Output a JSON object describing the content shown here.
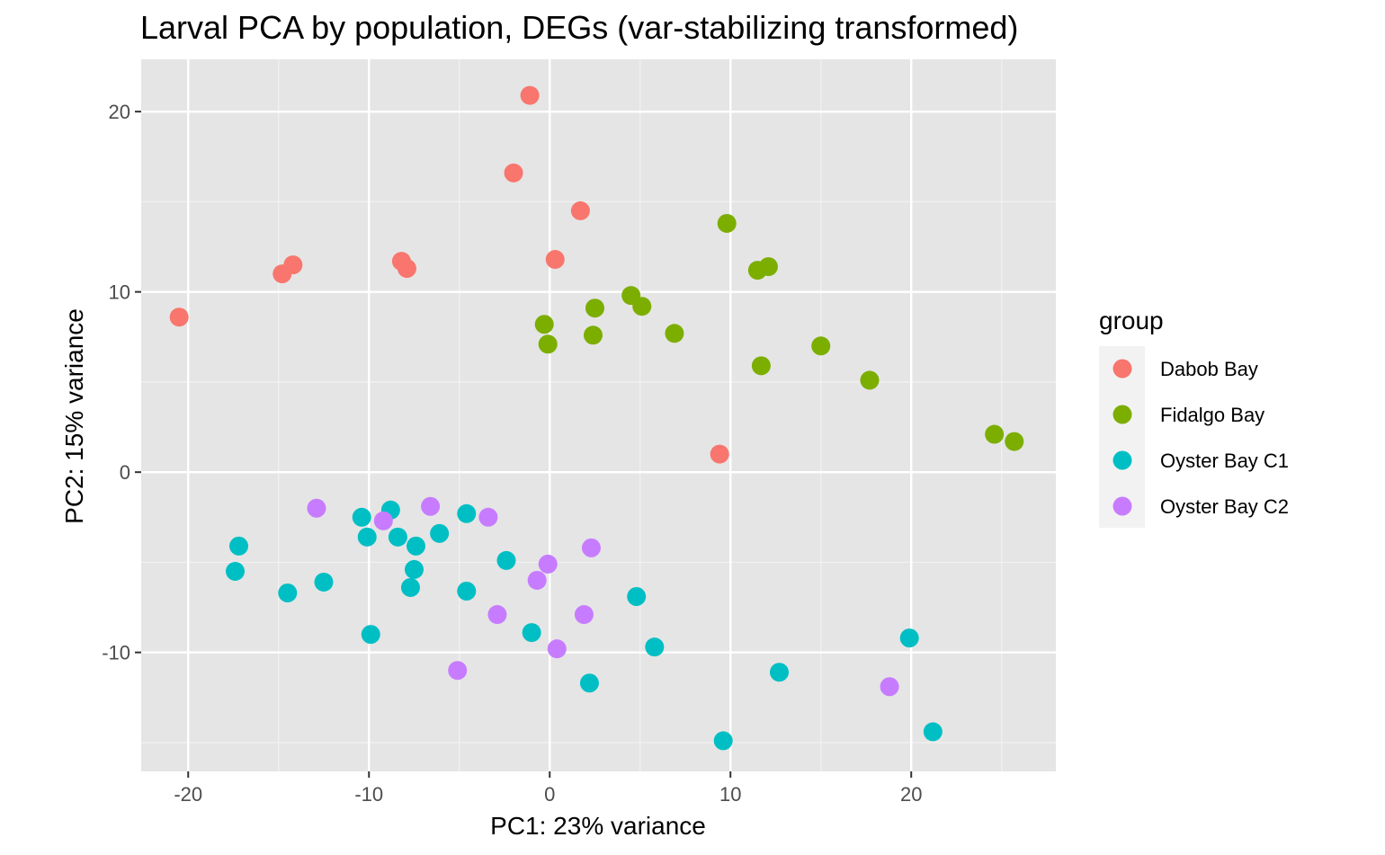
{
  "chart_data": {
    "type": "scatter",
    "title": "Larval PCA by population, DEGs (var-stabilizing transformed)",
    "xlabel": "PC1: 23% variance",
    "ylabel": "PC2: 15% variance",
    "xlim": [
      -22.6,
      28.0
    ],
    "ylim": [
      -16.6,
      22.9
    ],
    "x_ticks": [
      -20,
      -10,
      0,
      10,
      20
    ],
    "x_tick_labels": [
      "-20",
      "-10",
      "0",
      "10",
      "20"
    ],
    "y_ticks": [
      -10,
      0,
      10,
      20
    ],
    "y_tick_labels": [
      "-10",
      "0",
      "10",
      "20"
    ],
    "grid": true,
    "background": "#e5e5e5",
    "legend": {
      "title": "group",
      "position": "right"
    },
    "series": [
      {
        "name": "Dabob Bay",
        "color": "#f8766d",
        "points": [
          {
            "x": -1.1,
            "y": 20.9
          },
          {
            "x": -2.0,
            "y": 16.6
          },
          {
            "x": 1.7,
            "y": 14.5
          },
          {
            "x": 0.3,
            "y": 11.8
          },
          {
            "x": -8.2,
            "y": 11.7
          },
          {
            "x": -7.9,
            "y": 11.3
          },
          {
            "x": -14.2,
            "y": 11.5
          },
          {
            "x": -14.8,
            "y": 11.0
          },
          {
            "x": -20.5,
            "y": 8.6
          },
          {
            "x": 9.4,
            "y": 1.0
          }
        ]
      },
      {
        "name": "Fidalgo Bay",
        "color": "#7cae00",
        "points": [
          {
            "x": 9.8,
            "y": 13.8
          },
          {
            "x": 11.5,
            "y": 11.2
          },
          {
            "x": 12.1,
            "y": 11.4
          },
          {
            "x": 4.5,
            "y": 9.8
          },
          {
            "x": 5.1,
            "y": 9.2
          },
          {
            "x": 2.5,
            "y": 9.1
          },
          {
            "x": -0.3,
            "y": 8.2
          },
          {
            "x": -0.1,
            "y": 7.1
          },
          {
            "x": 2.4,
            "y": 7.6
          },
          {
            "x": 6.9,
            "y": 7.7
          },
          {
            "x": 15.0,
            "y": 7.0
          },
          {
            "x": 11.7,
            "y": 5.9
          },
          {
            "x": 17.7,
            "y": 5.1
          },
          {
            "x": 24.6,
            "y": 2.1
          },
          {
            "x": 25.7,
            "y": 1.7
          }
        ]
      },
      {
        "name": "Oyster Bay C1",
        "color": "#00bfc4",
        "points": [
          {
            "x": -17.2,
            "y": -4.1
          },
          {
            "x": -17.4,
            "y": -5.5
          },
          {
            "x": -14.5,
            "y": -6.7
          },
          {
            "x": -12.5,
            "y": -6.1
          },
          {
            "x": -10.4,
            "y": -2.5
          },
          {
            "x": -10.1,
            "y": -3.6
          },
          {
            "x": -8.8,
            "y": -2.1
          },
          {
            "x": -8.4,
            "y": -3.6
          },
          {
            "x": -7.4,
            "y": -4.1
          },
          {
            "x": -7.5,
            "y": -5.4
          },
          {
            "x": -7.7,
            "y": -6.4
          },
          {
            "x": -6.1,
            "y": -3.4
          },
          {
            "x": -9.9,
            "y": -9.0
          },
          {
            "x": -4.6,
            "y": -2.3
          },
          {
            "x": -4.6,
            "y": -6.6
          },
          {
            "x": -2.4,
            "y": -4.9
          },
          {
            "x": -1.0,
            "y": -8.9
          },
          {
            "x": 2.2,
            "y": -11.7
          },
          {
            "x": 4.8,
            "y": -6.9
          },
          {
            "x": 5.8,
            "y": -9.7
          },
          {
            "x": 9.6,
            "y": -14.9
          },
          {
            "x": 12.7,
            "y": -11.1
          },
          {
            "x": 19.9,
            "y": -9.2
          },
          {
            "x": 21.2,
            "y": -14.4
          }
        ]
      },
      {
        "name": "Oyster Bay C2",
        "color": "#c77cff",
        "points": [
          {
            "x": -12.9,
            "y": -2.0
          },
          {
            "x": -9.2,
            "y": -2.7
          },
          {
            "x": -6.6,
            "y": -1.9
          },
          {
            "x": -3.4,
            "y": -2.5
          },
          {
            "x": 2.3,
            "y": -4.2
          },
          {
            "x": -0.1,
            "y": -5.1
          },
          {
            "x": -0.7,
            "y": -6.0
          },
          {
            "x": -2.9,
            "y": -7.9
          },
          {
            "x": 1.9,
            "y": -7.9
          },
          {
            "x": 0.4,
            "y": -9.8
          },
          {
            "x": -5.1,
            "y": -11.0
          },
          {
            "x": 18.8,
            "y": -11.9
          }
        ]
      }
    ]
  }
}
